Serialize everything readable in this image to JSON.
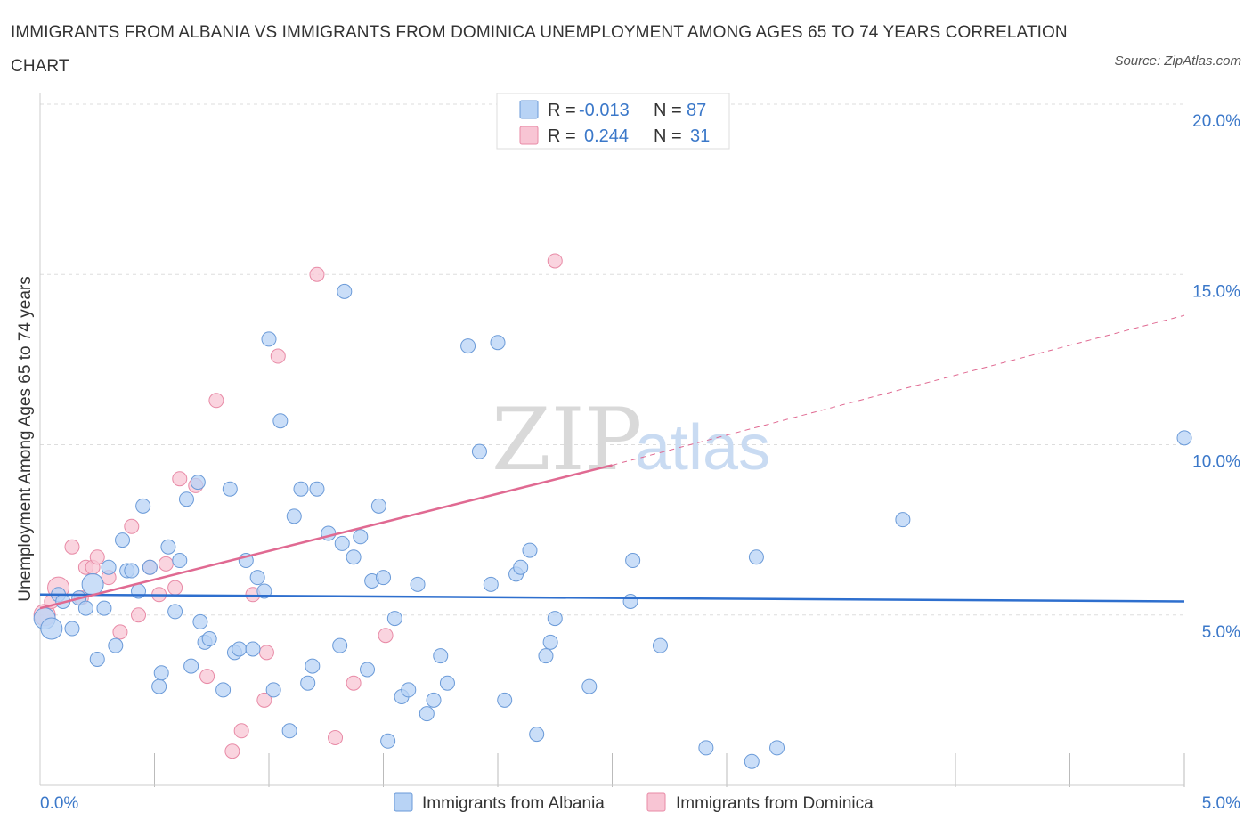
{
  "title": "IMMIGRANTS FROM ALBANIA VS IMMIGRANTS FROM DOMINICA UNEMPLOYMENT AMONG AGES 65 TO 74 YEARS CORRELATION CHART",
  "source": "Source: ZipAtlas.com",
  "watermark": {
    "zip": "ZIP",
    "atlas": "atlas"
  },
  "colors": {
    "albania_fill": "#b8d3f5",
    "albania_stroke": "#6a9ad8",
    "albania_line": "#2e6fce",
    "dominica_fill": "#f8c5d4",
    "dominica_stroke": "#e88aa6",
    "dominica_line": "#e06a92",
    "grid": "#dddddd",
    "axis_text": "#3b78c9"
  },
  "legend": {
    "rows": [
      {
        "r_label": "R =",
        "r_value": "-0.013",
        "n_label": "N =",
        "n_value": "87"
      },
      {
        "r_label": "R =",
        "r_value": "0.244",
        "n_label": "N =",
        "n_value": "31"
      }
    ]
  },
  "bottom_legend": [
    "Immigrants from Albania",
    "Immigrants from Dominica"
  ],
  "chart_data": {
    "type": "scatter",
    "title": "IMMIGRANTS FROM ALBANIA VS IMMIGRANTS FROM DOMINICA UNEMPLOYMENT AMONG AGES 65 TO 74 YEARS CORRELATION CHART",
    "xlabel": "",
    "ylabel": "Unemployment Among Ages 65 to 74 years",
    "xlim": [
      0,
      5
    ],
    "ylim": [
      0,
      20
    ],
    "x_tick_labels": [
      "0.0%",
      "5.0%"
    ],
    "y_ticks": [
      {
        "value": 5,
        "label": "5.0%"
      },
      {
        "value": 10,
        "label": "10.0%"
      },
      {
        "value": 15,
        "label": "15.0%"
      },
      {
        "value": 20,
        "label": "20.0%"
      }
    ],
    "grid": true,
    "series": [
      {
        "name": "Immigrants from Albania",
        "R": -0.013,
        "N": 87,
        "trend": {
          "x": [
            0,
            5
          ],
          "y": [
            5.6,
            5.4
          ],
          "style": "solid"
        },
        "points": [
          {
            "x": 0.02,
            "y": 4.9,
            "big": true
          },
          {
            "x": 0.05,
            "y": 4.6,
            "big": true
          },
          {
            "x": 0.08,
            "y": 5.6
          },
          {
            "x": 0.1,
            "y": 5.4
          },
          {
            "x": 0.14,
            "y": 4.6
          },
          {
            "x": 0.17,
            "y": 5.5
          },
          {
            "x": 0.2,
            "y": 5.2
          },
          {
            "x": 0.23,
            "y": 5.9,
            "big": true
          },
          {
            "x": 0.25,
            "y": 3.7
          },
          {
            "x": 0.28,
            "y": 5.2
          },
          {
            "x": 0.3,
            "y": 6.4
          },
          {
            "x": 0.33,
            "y": 4.1
          },
          {
            "x": 0.36,
            "y": 7.2
          },
          {
            "x": 0.38,
            "y": 6.3
          },
          {
            "x": 0.4,
            "y": 6.3
          },
          {
            "x": 0.43,
            "y": 5.7
          },
          {
            "x": 0.45,
            "y": 8.2
          },
          {
            "x": 0.48,
            "y": 6.4
          },
          {
            "x": 0.52,
            "y": 2.9
          },
          {
            "x": 0.53,
            "y": 3.3
          },
          {
            "x": 0.56,
            "y": 7.0
          },
          {
            "x": 0.59,
            "y": 5.1
          },
          {
            "x": 0.61,
            "y": 6.6
          },
          {
            "x": 0.64,
            "y": 8.4
          },
          {
            "x": 0.66,
            "y": 3.5
          },
          {
            "x": 0.69,
            "y": 8.9
          },
          {
            "x": 0.7,
            "y": 4.8
          },
          {
            "x": 0.72,
            "y": 4.2
          },
          {
            "x": 0.74,
            "y": 4.3
          },
          {
            "x": 0.8,
            "y": 2.8
          },
          {
            "x": 0.83,
            "y": 8.7
          },
          {
            "x": 0.85,
            "y": 3.9
          },
          {
            "x": 0.87,
            "y": 4.0
          },
          {
            "x": 0.9,
            "y": 6.6
          },
          {
            "x": 0.93,
            "y": 4.0
          },
          {
            "x": 0.95,
            "y": 6.1
          },
          {
            "x": 0.98,
            "y": 5.7
          },
          {
            "x": 1.0,
            "y": 13.1
          },
          {
            "x": 1.02,
            "y": 2.8
          },
          {
            "x": 1.05,
            "y": 10.7
          },
          {
            "x": 1.09,
            "y": 1.6
          },
          {
            "x": 1.11,
            "y": 7.9
          },
          {
            "x": 1.14,
            "y": 8.7
          },
          {
            "x": 1.17,
            "y": 3.0
          },
          {
            "x": 1.19,
            "y": 3.5
          },
          {
            "x": 1.21,
            "y": 8.7
          },
          {
            "x": 1.26,
            "y": 7.4
          },
          {
            "x": 1.31,
            "y": 4.1
          },
          {
            "x": 1.32,
            "y": 7.1
          },
          {
            "x": 1.33,
            "y": 14.5
          },
          {
            "x": 1.37,
            "y": 6.7
          },
          {
            "x": 1.4,
            "y": 7.3
          },
          {
            "x": 1.43,
            "y": 3.4
          },
          {
            "x": 1.45,
            "y": 6.0
          },
          {
            "x": 1.48,
            "y": 8.2
          },
          {
            "x": 1.5,
            "y": 6.1
          },
          {
            "x": 1.52,
            "y": 1.3
          },
          {
            "x": 1.55,
            "y": 4.9
          },
          {
            "x": 1.58,
            "y": 2.6
          },
          {
            "x": 1.61,
            "y": 2.8
          },
          {
            "x": 1.65,
            "y": 5.9
          },
          {
            "x": 1.69,
            "y": 2.1
          },
          {
            "x": 1.72,
            "y": 2.5
          },
          {
            "x": 1.75,
            "y": 3.8
          },
          {
            "x": 1.78,
            "y": 3.0
          },
          {
            "x": 1.87,
            "y": 12.9
          },
          {
            "x": 1.92,
            "y": 9.8
          },
          {
            "x": 1.97,
            "y": 5.9
          },
          {
            "x": 2.0,
            "y": 13.0
          },
          {
            "x": 2.03,
            "y": 2.5
          },
          {
            "x": 2.08,
            "y": 6.2
          },
          {
            "x": 2.1,
            "y": 6.4
          },
          {
            "x": 2.14,
            "y": 6.9
          },
          {
            "x": 2.17,
            "y": 1.5
          },
          {
            "x": 2.21,
            "y": 3.8
          },
          {
            "x": 2.23,
            "y": 4.2
          },
          {
            "x": 2.25,
            "y": 4.9
          },
          {
            "x": 2.4,
            "y": 2.9
          },
          {
            "x": 2.58,
            "y": 5.4
          },
          {
            "x": 2.59,
            "y": 6.6
          },
          {
            "x": 2.71,
            "y": 4.1
          },
          {
            "x": 2.91,
            "y": 1.1
          },
          {
            "x": 3.13,
            "y": 6.7
          },
          {
            "x": 3.11,
            "y": 0.7
          },
          {
            "x": 3.22,
            "y": 1.1
          },
          {
            "x": 3.77,
            "y": 7.8
          },
          {
            "x": 5.0,
            "y": 10.2
          }
        ]
      },
      {
        "name": "Immigrants from Dominica",
        "R": 0.244,
        "N": 31,
        "trend": {
          "x": [
            0,
            2.5
          ],
          "y": [
            5.2,
            9.4
          ],
          "dashed_to": {
            "x": 5.0,
            "y": 13.8
          },
          "style": "solid"
        },
        "points": [
          {
            "x": 0.02,
            "y": 5.0,
            "big": true
          },
          {
            "x": 0.05,
            "y": 5.4
          },
          {
            "x": 0.08,
            "y": 5.8,
            "big": true
          },
          {
            "x": 0.14,
            "y": 7.0
          },
          {
            "x": 0.18,
            "y": 5.5
          },
          {
            "x": 0.2,
            "y": 6.4
          },
          {
            "x": 0.23,
            "y": 6.4
          },
          {
            "x": 0.25,
            "y": 6.7
          },
          {
            "x": 0.3,
            "y": 6.1
          },
          {
            "x": 0.35,
            "y": 4.5
          },
          {
            "x": 0.4,
            "y": 7.6
          },
          {
            "x": 0.43,
            "y": 5.0
          },
          {
            "x": 0.48,
            "y": 6.4
          },
          {
            "x": 0.52,
            "y": 5.6
          },
          {
            "x": 0.55,
            "y": 6.5
          },
          {
            "x": 0.59,
            "y": 5.8
          },
          {
            "x": 0.61,
            "y": 9.0
          },
          {
            "x": 0.68,
            "y": 8.8
          },
          {
            "x": 0.73,
            "y": 3.2
          },
          {
            "x": 0.77,
            "y": 11.3
          },
          {
            "x": 0.84,
            "y": 1.0
          },
          {
            "x": 0.88,
            "y": 1.6
          },
          {
            "x": 0.93,
            "y": 5.6
          },
          {
            "x": 0.98,
            "y": 2.5
          },
          {
            "x": 0.99,
            "y": 3.9
          },
          {
            "x": 1.04,
            "y": 12.6
          },
          {
            "x": 1.21,
            "y": 15.0
          },
          {
            "x": 1.29,
            "y": 1.4
          },
          {
            "x": 1.37,
            "y": 3.0
          },
          {
            "x": 1.51,
            "y": 4.4
          },
          {
            "x": 2.25,
            "y": 15.4
          }
        ]
      }
    ]
  }
}
